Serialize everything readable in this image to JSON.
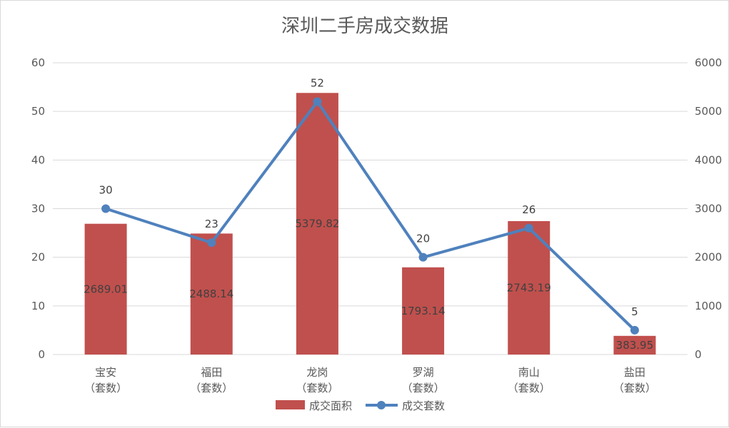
{
  "chart_data": {
    "type": "bar+line",
    "title": "深圳二手房成交数据",
    "categories": [
      [
        "宝安",
        "（套数）"
      ],
      [
        "福田",
        "（套数）"
      ],
      [
        "龙岗",
        "（套数）"
      ],
      [
        "罗湖",
        "（套数）"
      ],
      [
        "南山",
        "（套数）"
      ],
      [
        "盐田",
        "（套数）"
      ]
    ],
    "left_axis": {
      "ylim": [
        0,
        60
      ],
      "ticks": [
        0,
        10,
        20,
        30,
        40,
        50,
        60
      ]
    },
    "right_axis": {
      "ylim": [
        0,
        6000
      ],
      "ticks": [
        0,
        1000,
        2000,
        3000,
        4000,
        5000,
        6000
      ]
    },
    "grid": true,
    "legend_position": "bottom",
    "series": [
      {
        "name": "成交面积",
        "type": "bar",
        "axis": "right",
        "color": "#c0504d",
        "values": [
          2689.01,
          2488.14,
          5379.82,
          1793.14,
          2743.19,
          383.95
        ],
        "labels": [
          "2689.01",
          "2488.14",
          "5379.82",
          "1793.14",
          "2743.19",
          "383.95"
        ]
      },
      {
        "name": "成交套数",
        "type": "line",
        "axis": "left",
        "color": "#4f81bd",
        "values": [
          30,
          23,
          52,
          20,
          26,
          5
        ],
        "labels": [
          "30",
          "23",
          "52",
          "20",
          "26",
          "5"
        ]
      }
    ]
  }
}
